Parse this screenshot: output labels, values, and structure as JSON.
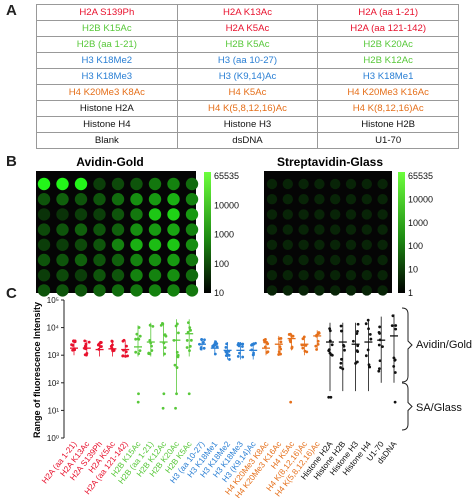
{
  "panels": {
    "a": "A",
    "b": "B",
    "c": "C"
  },
  "colors": {
    "red": "#e8112d",
    "green": "#58c83a",
    "blue": "#2a7fd4",
    "orange": "#e56f1a",
    "black": "#111111"
  },
  "table": {
    "rows": [
      [
        {
          "text": "H2A S139Ph",
          "color": "red"
        },
        {
          "text": "H2A K13Ac",
          "color": "red"
        },
        {
          "text": "H2A (aa 1-21)",
          "color": "red"
        }
      ],
      [
        {
          "text": "H2B K15Ac",
          "color": "green"
        },
        {
          "text": "H2A K5Ac",
          "color": "red"
        },
        {
          "text": "H2A (aa 121-142)",
          "color": "red"
        }
      ],
      [
        {
          "text": "H2B (aa 1-21)",
          "color": "green"
        },
        {
          "text": "H2B K5Ac",
          "color": "green"
        },
        {
          "text": "H2B K20Ac",
          "color": "green"
        }
      ],
      [
        {
          "text": "H3 K18Me2",
          "color": "blue"
        },
        {
          "text": "H3 (aa 10-27)",
          "color": "blue"
        },
        {
          "text": "H2B K12Ac",
          "color": "green"
        }
      ],
      [
        {
          "text": "H3 K18Me3",
          "color": "blue"
        },
        {
          "text": "H3 (K9,14)Ac",
          "color": "blue"
        },
        {
          "text": "H3 K18Me1",
          "color": "blue"
        }
      ],
      [
        {
          "text": "H4 K20Me3 K8Ac",
          "color": "orange"
        },
        {
          "text": "H4 K5Ac",
          "color": "orange"
        },
        {
          "text": "H4 K20Me3 K16Ac",
          "color": "orange"
        }
      ],
      [
        {
          "text": "Histone H2A",
          "color": "black"
        },
        {
          "text": "H4 K(5,8,12,16)Ac",
          "color": "orange"
        },
        {
          "text": "H4 K(8,12,16)Ac",
          "color": "orange"
        }
      ],
      [
        {
          "text": "Histone H4",
          "color": "black"
        },
        {
          "text": "Histone H3",
          "color": "black"
        },
        {
          "text": "Histone H2B",
          "color": "black"
        }
      ],
      [
        {
          "text": "Blank",
          "color": "black"
        },
        {
          "text": "dsDNA",
          "color": "black"
        },
        {
          "text": "U1-70",
          "color": "black"
        }
      ]
    ]
  },
  "arrays": {
    "left_title": "Avidin-Gold",
    "right_title": "Streptavidin-Glass",
    "left_scale": [
      "65535",
      "10000",
      "1000",
      "100",
      "10"
    ],
    "right_scale": [
      "65535",
      "10000",
      "1000",
      "100",
      "10",
      "1"
    ]
  },
  "chart_data": {
    "type": "scatter",
    "ylabel": "Range of fluorescence Intensity",
    "yscale": "log",
    "ylim": [
      1,
      100000
    ],
    "yticks": [
      "10⁰",
      "10¹",
      "10²",
      "10³",
      "10⁴",
      "10⁵"
    ],
    "categories": [
      {
        "label": "H2A (aa 1-21)",
        "color": "red",
        "median": 1800,
        "low": 1000,
        "high": 3500,
        "outliers": []
      },
      {
        "label": "H2A K13Ac",
        "color": "red",
        "median": 1800,
        "low": 1000,
        "high": 3500,
        "outliers": []
      },
      {
        "label": "H2A S139Ph",
        "color": "red",
        "median": 1600,
        "low": 900,
        "high": 3000,
        "outliers": []
      },
      {
        "label": "H2A K5Ac",
        "color": "red",
        "median": 1700,
        "low": 900,
        "high": 3500,
        "outliers": []
      },
      {
        "label": "H2A (aa 121-142)",
        "color": "red",
        "median": 1600,
        "low": 900,
        "high": 3500,
        "outliers": []
      },
      {
        "label": "H2B K15Ac",
        "color": "green",
        "median": 2000,
        "low": 900,
        "high": 12000,
        "outliers": [
          40,
          20
        ]
      },
      {
        "label": "H2B (aa 1-21)",
        "color": "green",
        "median": 3000,
        "low": 900,
        "high": 15000,
        "outliers": []
      },
      {
        "label": "H2B K12Ac",
        "color": "green",
        "median": 3000,
        "low": 900,
        "high": 15000,
        "outliers": [
          40,
          12
        ]
      },
      {
        "label": "H2B K20Ac",
        "color": "green",
        "median": 3500,
        "low": 40,
        "high": 20000,
        "outliers": [
          40,
          12
        ]
      },
      {
        "label": "H2B K5Ac",
        "color": "green",
        "median": 6000,
        "low": 900,
        "high": 20000,
        "outliers": [
          40
        ]
      },
      {
        "label": "H3 (aa 10-27)",
        "color": "blue",
        "median": 2500,
        "low": 1500,
        "high": 4000,
        "outliers": []
      },
      {
        "label": "H3 K18Me1",
        "color": "blue",
        "median": 1800,
        "low": 1000,
        "high": 3500,
        "outliers": []
      },
      {
        "label": "H3 K18Me2",
        "color": "blue",
        "median": 1500,
        "low": 700,
        "high": 3000,
        "outliers": []
      },
      {
        "label": "H3 K18Me3",
        "color": "blue",
        "median": 1500,
        "low": 700,
        "high": 3000,
        "outliers": []
      },
      {
        "label": "H3 (K9,14)Ac",
        "color": "blue",
        "median": 1500,
        "low": 700,
        "high": 3000,
        "outliers": []
      },
      {
        "label": "H4 K20Me3 K8Ac",
        "color": "orange",
        "median": 1800,
        "low": 1000,
        "high": 4000,
        "outliers": []
      },
      {
        "label": "H4 K20Me3 K16Ac",
        "color": "orange",
        "median": 2500,
        "low": 1000,
        "high": 5000,
        "outliers": []
      },
      {
        "label": "H4 K5Ac",
        "color": "orange",
        "median": 4000,
        "low": 1500,
        "high": 6000,
        "outliers": [
          20
        ]
      },
      {
        "label": "H4 K(8,12,16)Ac",
        "color": "orange",
        "median": 2500,
        "low": 1000,
        "high": 5000,
        "outliers": []
      },
      {
        "label": "H4 K(5,8,12,16)Ac",
        "color": "orange",
        "median": 5000,
        "low": 1500,
        "high": 8000,
        "outliers": []
      },
      {
        "label": "Histone H2A",
        "color": "black",
        "median": 3000,
        "low": 50,
        "high": 15000,
        "outliers": [
          30,
          30
        ]
      },
      {
        "label": "Histone H2B",
        "color": "black",
        "median": 3000,
        "low": 50,
        "high": 15000,
        "outliers": []
      },
      {
        "label": "Histone H3",
        "color": "black",
        "median": 2500,
        "low": 50,
        "high": 15000,
        "outliers": []
      },
      {
        "label": "Histone H4",
        "color": "black",
        "median": 3000,
        "low": 50,
        "high": 20000,
        "outliers": []
      },
      {
        "label": "U1-70",
        "color": "black",
        "median": 3500,
        "low": 100,
        "high": 25000,
        "outliers": []
      },
      {
        "label": "dsDNA",
        "color": "black",
        "median": 5000,
        "low": 100,
        "high": 30000,
        "outliers": [
          20
        ]
      }
    ],
    "annotations": [
      "Avidin/Gold",
      "SA/Glass"
    ]
  }
}
